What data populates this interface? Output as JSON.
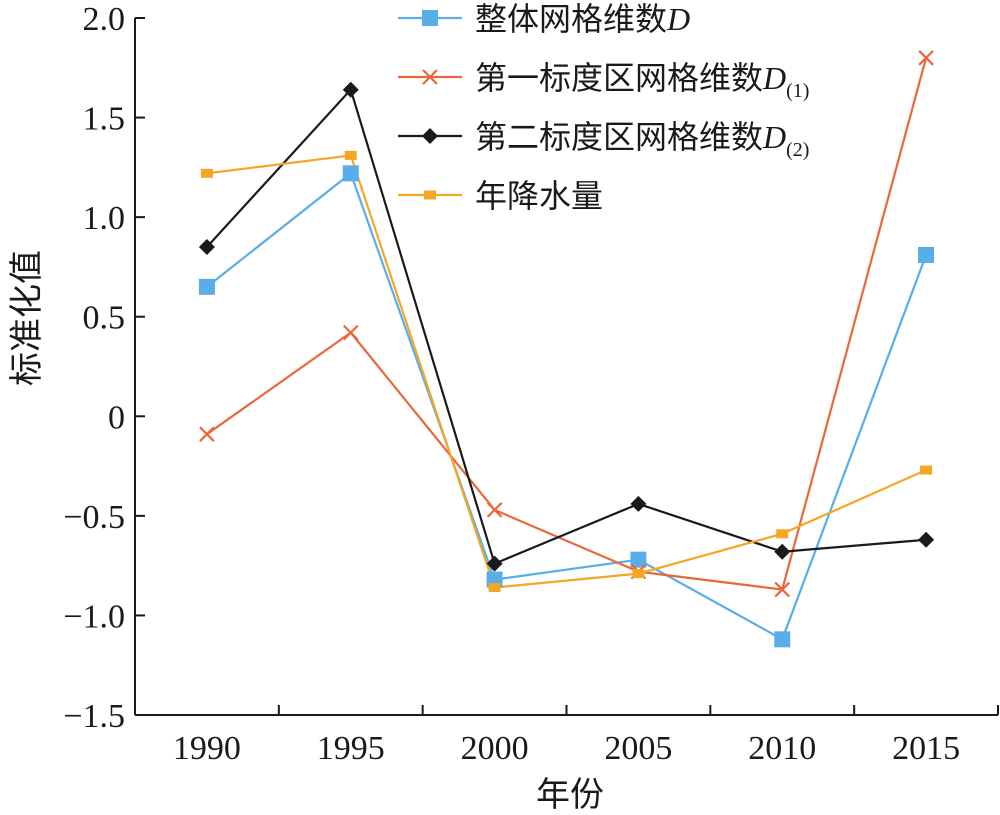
{
  "chart_data": {
    "type": "line",
    "xlabel": "年份",
    "ylabel": "标准化值",
    "x": [
      1990,
      1995,
      2000,
      2005,
      2010,
      2015
    ],
    "x_tick_labels": [
      "1990",
      "1995",
      "2000",
      "2005",
      "2010",
      "2015"
    ],
    "ylim": [
      -1.5,
      2.0
    ],
    "y_ticks": [
      -1.5,
      -1.0,
      -0.5,
      0,
      0.5,
      1.0,
      1.5,
      2.0
    ],
    "y_tick_labels": [
      "-1.5",
      "-1.0",
      "-0.5",
      "0",
      "0.5",
      "1.0",
      "1.5",
      "2.0"
    ],
    "grid": false,
    "legend_position": "top-right",
    "series": [
      {
        "name": "整体网格维数",
        "symbol": "D",
        "subscript": "",
        "marker": "square",
        "color": "#5aaee8",
        "values": [
          0.65,
          1.22,
          -0.82,
          -0.72,
          -1.12,
          0.81
        ]
      },
      {
        "name": "第一标度区网格维数",
        "symbol": "D",
        "subscript": "(1)",
        "marker": "x",
        "color": "#e8683a",
        "values": [
          -0.09,
          0.42,
          -0.47,
          -0.78,
          -0.87,
          1.8
        ]
      },
      {
        "name": "第二标度区网格维数",
        "symbol": "D",
        "subscript": "(2)",
        "marker": "diamond",
        "color": "#1a1a1a",
        "values": [
          0.85,
          1.64,
          -0.74,
          -0.44,
          -0.68,
          -0.62
        ]
      },
      {
        "name": "年降水量",
        "symbol": "",
        "subscript": "",
        "marker": "small-square",
        "color": "#f5a623",
        "values": [
          1.22,
          1.31,
          -0.86,
          -0.79,
          -0.59,
          -0.27
        ]
      }
    ]
  }
}
